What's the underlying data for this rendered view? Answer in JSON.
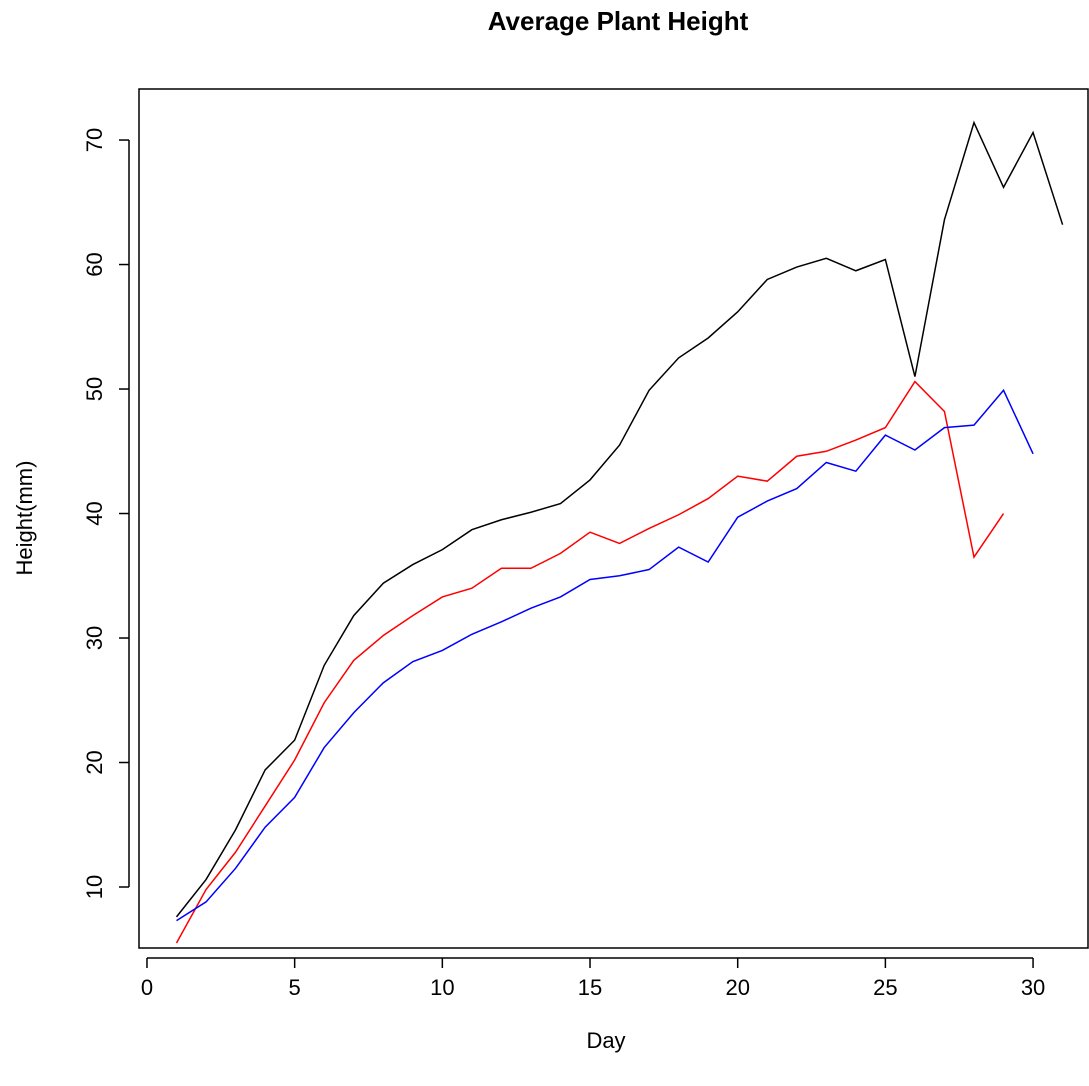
{
  "chart_data": {
    "type": "line",
    "title": "Average Plant Height",
    "x_label": "Day",
    "y_label": "Height(mm)",
    "xlim": [
      -0.27,
      31.86
    ],
    "ylim": [
      5.1,
      74.1
    ],
    "xticks": [
      0,
      5,
      10,
      15,
      20,
      25,
      30
    ],
    "yticks": [
      10,
      20,
      30,
      40,
      50,
      60,
      70
    ],
    "series": [
      {
        "color": "#000000",
        "x": [
          1,
          2,
          3,
          4,
          5,
          6,
          7,
          8,
          9,
          10,
          11,
          12,
          13,
          14,
          15,
          16,
          17,
          18,
          19,
          20,
          21,
          22,
          23,
          24,
          25,
          26,
          27,
          28,
          29,
          30,
          31
        ],
        "values": [
          7.6,
          10.6,
          14.6,
          19.4,
          21.8,
          27.8,
          31.8,
          34.4,
          35.9,
          37.1,
          38.7,
          39.5,
          40.1,
          40.8,
          42.7,
          45.5,
          49.9,
          52.5,
          54.1,
          56.2,
          58.8,
          59.8,
          60.5,
          59.5,
          60.4,
          51.0,
          63.6,
          71.4,
          66.2,
          70.6,
          63.2
        ]
      },
      {
        "color": "#ff0000",
        "x": [
          1,
          2,
          3,
          4,
          5,
          6,
          7,
          8,
          9,
          10,
          11,
          12,
          13,
          14,
          15,
          16,
          17,
          18,
          19,
          20,
          21,
          22,
          23,
          24,
          25,
          26,
          27,
          28,
          29
        ],
        "values": [
          5.5,
          9.8,
          12.8,
          16.5,
          20.2,
          24.8,
          28.2,
          30.2,
          31.8,
          33.3,
          34.0,
          35.6,
          35.6,
          36.8,
          38.5,
          37.6,
          38.8,
          39.9,
          41.2,
          43.0,
          42.6,
          44.6,
          45.0,
          45.9,
          46.9,
          50.6,
          48.2,
          36.5,
          40.0
        ]
      },
      {
        "color": "#0000ff",
        "x": [
          1,
          2,
          3,
          4,
          5,
          6,
          7,
          8,
          9,
          10,
          11,
          12,
          13,
          14,
          15,
          16,
          17,
          18,
          19,
          20,
          21,
          22,
          23,
          24,
          25,
          26,
          27,
          28,
          29,
          30
        ],
        "values": [
          7.3,
          8.8,
          11.5,
          14.8,
          17.2,
          21.2,
          24.0,
          26.4,
          28.1,
          29.0,
          30.3,
          31.3,
          32.4,
          33.3,
          34.7,
          35.0,
          35.5,
          37.3,
          36.1,
          39.7,
          41.0,
          42.0,
          44.1,
          43.4,
          46.3,
          45.1,
          46.9,
          47.1,
          49.9,
          44.8
        ]
      }
    ]
  }
}
